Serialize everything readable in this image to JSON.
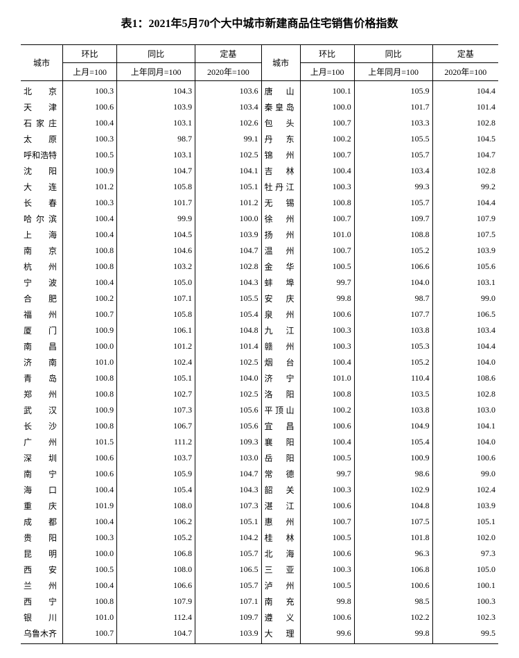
{
  "title": "表1：2021年5月70个大中城市新建商品住宅销售价格指数",
  "headers": {
    "city": "城市",
    "hb": "环比",
    "tb": "同比",
    "dj": "定基",
    "hb_sub": "上月=100",
    "tb_sub": "上年同月=100",
    "dj_sub": "2020年=100"
  },
  "left": [
    {
      "city": "北京",
      "hb": "100.3",
      "tb": "104.3",
      "dj": "103.6"
    },
    {
      "city": "天津",
      "hb": "100.6",
      "tb": "103.9",
      "dj": "103.4"
    },
    {
      "city": "石家庄",
      "hb": "100.4",
      "tb": "103.1",
      "dj": "102.6"
    },
    {
      "city": "太原",
      "hb": "100.3",
      "tb": "98.7",
      "dj": "99.1"
    },
    {
      "city": "呼和浩特",
      "hb": "100.5",
      "tb": "103.1",
      "dj": "102.5"
    },
    {
      "city": "沈阳",
      "hb": "100.9",
      "tb": "104.7",
      "dj": "104.1"
    },
    {
      "city": "大连",
      "hb": "101.2",
      "tb": "105.8",
      "dj": "105.1"
    },
    {
      "city": "长春",
      "hb": "100.3",
      "tb": "101.7",
      "dj": "101.2"
    },
    {
      "city": "哈尔滨",
      "hb": "100.4",
      "tb": "99.9",
      "dj": "100.0"
    },
    {
      "city": "上海",
      "hb": "100.4",
      "tb": "104.5",
      "dj": "103.9"
    },
    {
      "city": "南京",
      "hb": "100.8",
      "tb": "104.6",
      "dj": "104.7"
    },
    {
      "city": "杭州",
      "hb": "100.8",
      "tb": "103.2",
      "dj": "102.8"
    },
    {
      "city": "宁波",
      "hb": "100.4",
      "tb": "105.0",
      "dj": "104.3"
    },
    {
      "city": "合肥",
      "hb": "100.2",
      "tb": "107.1",
      "dj": "105.5"
    },
    {
      "city": "福州",
      "hb": "100.7",
      "tb": "105.8",
      "dj": "105.4"
    },
    {
      "city": "厦门",
      "hb": "100.9",
      "tb": "106.1",
      "dj": "104.8"
    },
    {
      "city": "南昌",
      "hb": "100.0",
      "tb": "101.2",
      "dj": "101.4"
    },
    {
      "city": "济南",
      "hb": "101.0",
      "tb": "102.4",
      "dj": "102.5"
    },
    {
      "city": "青岛",
      "hb": "100.8",
      "tb": "105.1",
      "dj": "104.0"
    },
    {
      "city": "郑州",
      "hb": "100.8",
      "tb": "102.7",
      "dj": "102.5"
    },
    {
      "city": "武汉",
      "hb": "100.9",
      "tb": "107.3",
      "dj": "105.6"
    },
    {
      "city": "长沙",
      "hb": "100.8",
      "tb": "106.7",
      "dj": "105.6"
    },
    {
      "city": "广州",
      "hb": "101.5",
      "tb": "111.2",
      "dj": "109.3"
    },
    {
      "city": "深圳",
      "hb": "100.6",
      "tb": "103.7",
      "dj": "103.0"
    },
    {
      "city": "南宁",
      "hb": "100.6",
      "tb": "105.9",
      "dj": "104.7"
    },
    {
      "city": "海口",
      "hb": "100.4",
      "tb": "105.4",
      "dj": "104.3"
    },
    {
      "city": "重庆",
      "hb": "101.9",
      "tb": "108.0",
      "dj": "107.3"
    },
    {
      "city": "成都",
      "hb": "100.4",
      "tb": "106.2",
      "dj": "105.1"
    },
    {
      "city": "贵阳",
      "hb": "100.3",
      "tb": "105.2",
      "dj": "104.2"
    },
    {
      "city": "昆明",
      "hb": "100.0",
      "tb": "106.8",
      "dj": "105.7"
    },
    {
      "city": "西安",
      "hb": "100.5",
      "tb": "108.0",
      "dj": "106.5"
    },
    {
      "city": "兰州",
      "hb": "100.4",
      "tb": "106.6",
      "dj": "105.7"
    },
    {
      "city": "西宁",
      "hb": "100.8",
      "tb": "107.9",
      "dj": "107.1"
    },
    {
      "city": "银川",
      "hb": "101.0",
      "tb": "112.4",
      "dj": "109.7"
    },
    {
      "city": "乌鲁木齐",
      "hb": "100.7",
      "tb": "104.7",
      "dj": "103.9"
    }
  ],
  "right": [
    {
      "city": "唐山",
      "hb": "100.1",
      "tb": "105.9",
      "dj": "104.4"
    },
    {
      "city": "秦皇岛",
      "hb": "100.0",
      "tb": "101.7",
      "dj": "101.4"
    },
    {
      "city": "包头",
      "hb": "100.7",
      "tb": "103.3",
      "dj": "102.8"
    },
    {
      "city": "丹东",
      "hb": "100.2",
      "tb": "105.5",
      "dj": "104.5"
    },
    {
      "city": "锦州",
      "hb": "100.7",
      "tb": "105.7",
      "dj": "104.7"
    },
    {
      "city": "吉林",
      "hb": "100.4",
      "tb": "103.4",
      "dj": "102.8"
    },
    {
      "city": "牡丹江",
      "hb": "100.3",
      "tb": "99.3",
      "dj": "99.2"
    },
    {
      "city": "无锡",
      "hb": "100.8",
      "tb": "105.7",
      "dj": "104.4"
    },
    {
      "city": "徐州",
      "hb": "100.7",
      "tb": "109.7",
      "dj": "107.9"
    },
    {
      "city": "扬州",
      "hb": "101.0",
      "tb": "108.8",
      "dj": "107.5"
    },
    {
      "city": "温州",
      "hb": "100.7",
      "tb": "105.2",
      "dj": "103.9"
    },
    {
      "city": "金华",
      "hb": "100.5",
      "tb": "106.6",
      "dj": "105.6"
    },
    {
      "city": "蚌埠",
      "hb": "99.7",
      "tb": "104.0",
      "dj": "103.1"
    },
    {
      "city": "安庆",
      "hb": "99.8",
      "tb": "98.7",
      "dj": "99.0"
    },
    {
      "city": "泉州",
      "hb": "100.6",
      "tb": "107.7",
      "dj": "106.5"
    },
    {
      "city": "九江",
      "hb": "100.3",
      "tb": "103.8",
      "dj": "103.4"
    },
    {
      "city": "赣州",
      "hb": "100.3",
      "tb": "105.3",
      "dj": "104.4"
    },
    {
      "city": "烟台",
      "hb": "100.4",
      "tb": "105.2",
      "dj": "104.0"
    },
    {
      "city": "济宁",
      "hb": "101.0",
      "tb": "110.4",
      "dj": "108.6"
    },
    {
      "city": "洛阳",
      "hb": "100.8",
      "tb": "103.5",
      "dj": "102.8"
    },
    {
      "city": "平顶山",
      "hb": "100.2",
      "tb": "103.8",
      "dj": "103.0"
    },
    {
      "city": "宜昌",
      "hb": "100.6",
      "tb": "104.9",
      "dj": "104.1"
    },
    {
      "city": "襄阳",
      "hb": "100.4",
      "tb": "105.4",
      "dj": "104.0"
    },
    {
      "city": "岳阳",
      "hb": "100.5",
      "tb": "100.9",
      "dj": "100.6"
    },
    {
      "city": "常德",
      "hb": "99.7",
      "tb": "98.6",
      "dj": "99.0"
    },
    {
      "city": "韶关",
      "hb": "100.3",
      "tb": "102.9",
      "dj": "102.4"
    },
    {
      "city": "湛江",
      "hb": "100.6",
      "tb": "104.8",
      "dj": "103.9"
    },
    {
      "city": "惠州",
      "hb": "100.7",
      "tb": "107.5",
      "dj": "105.1"
    },
    {
      "city": "桂林",
      "hb": "100.5",
      "tb": "101.8",
      "dj": "102.0"
    },
    {
      "city": "北海",
      "hb": "100.6",
      "tb": "96.3",
      "dj": "97.3"
    },
    {
      "city": "三亚",
      "hb": "100.3",
      "tb": "106.8",
      "dj": "105.0"
    },
    {
      "city": "泸州",
      "hb": "100.5",
      "tb": "100.6",
      "dj": "100.1"
    },
    {
      "city": "南充",
      "hb": "99.8",
      "tb": "98.5",
      "dj": "100.3"
    },
    {
      "city": "遵义",
      "hb": "100.6",
      "tb": "102.2",
      "dj": "102.3"
    },
    {
      "city": "大理",
      "hb": "99.6",
      "tb": "99.8",
      "dj": "99.5"
    }
  ]
}
